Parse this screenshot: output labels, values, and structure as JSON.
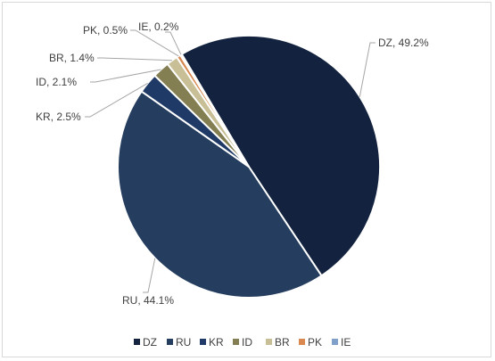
{
  "chart_data": {
    "type": "pie",
    "title": "",
    "legend_position": "bottom",
    "slices": [
      {
        "label": "DZ",
        "value": 49.2,
        "color": "#13233f"
      },
      {
        "label": "RU",
        "value": 44.1,
        "color": "#253d5e"
      },
      {
        "label": "KR",
        "value": 2.5,
        "color": "#1f3a66"
      },
      {
        "label": "ID",
        "value": 2.1,
        "color": "#847f53"
      },
      {
        "label": "BR",
        "value": 1.4,
        "color": "#c8bf96"
      },
      {
        "label": "PK",
        "value": 0.5,
        "color": "#d9884f"
      },
      {
        "label": "IE",
        "value": 0.2,
        "color": "#7fa0c9"
      }
    ],
    "data_labels": [
      "DZ, 49.2%",
      "RU, 44.1%",
      "KR, 2.5%",
      "ID, 2.1%",
      "BR, 1.4%",
      "PK, 0.5%",
      "IE, 0.2%"
    ]
  }
}
